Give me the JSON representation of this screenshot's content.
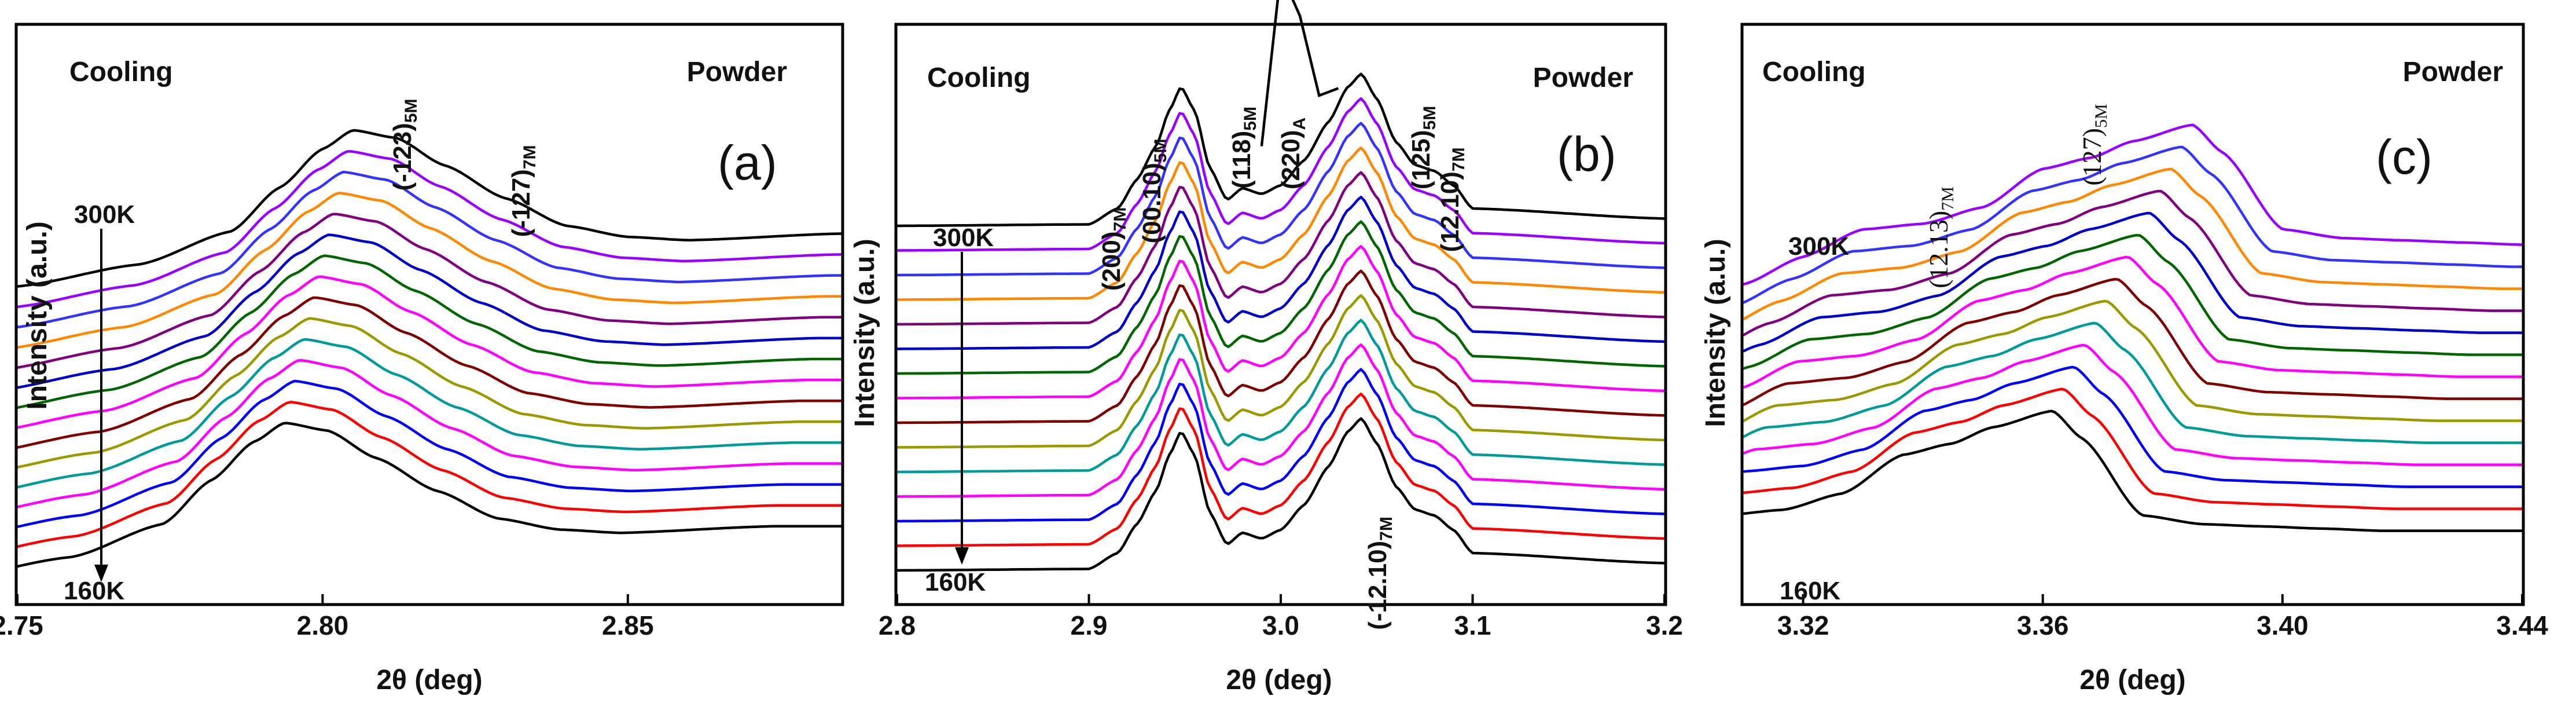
{
  "figure": {
    "background": "#ffffff",
    "frame_color": "#000000"
  },
  "series_colors": [
    "#000000",
    "#ff0000",
    "#0000ff",
    "#ff00ff",
    "#009a9a",
    "#999900",
    "#800000",
    "#ff00ff",
    "#006600",
    "#0000cc",
    "#800080",
    "#ff8800",
    "#3333ff",
    "#9900ff"
  ],
  "chart_data": [
    {
      "panel": "(a)",
      "type": "line",
      "title": "",
      "xlabel": "2θ (deg)",
      "ylabel": "Intensity (a.u.)",
      "xlim": [
        2.75,
        2.885
      ],
      "xticks": [
        2.75,
        2.8,
        2.85
      ],
      "xtick_labels": [
        "2.75",
        "2.80",
        "2.85"
      ],
      "top_left_text": "Cooling",
      "top_right_text": "Powder",
      "temperatures": {
        "start": "300K",
        "end": "160K",
        "direction": "down"
      },
      "n_curves": 15,
      "offset_step": 0.095,
      "series": [
        {
          "name": "profile",
          "x": [
            2.75,
            2.77,
            2.785,
            2.793,
            2.8,
            2.805,
            2.812,
            2.82,
            2.83,
            2.84,
            2.85,
            2.86,
            2.885
          ],
          "y": [
            0.0,
            0.2,
            0.5,
            0.9,
            1.25,
            1.42,
            1.35,
            1.1,
            0.8,
            0.55,
            0.45,
            0.42,
            0.48
          ]
        }
      ],
      "peak_shift_per_curve": -0.0008,
      "annotations": [
        {
          "base": "(-123)",
          "sub": "5M",
          "x": 2.806
        },
        {
          "base": "(-127)",
          "sub": "7M",
          "x": 2.826
        }
      ]
    },
    {
      "panel": "(b)",
      "type": "line",
      "title": "",
      "xlabel": "2θ (deg)",
      "ylabel": "Intensity (a.u.)",
      "xlim": [
        2.8,
        3.2
      ],
      "xticks": [
        2.8,
        2.9,
        3.0,
        3.1,
        3.2
      ],
      "xtick_labels": [
        "2.8",
        "2.9",
        "3.0",
        "3.1",
        "3.2"
      ],
      "top_left_text": "Cooling",
      "top_right_text": "Powder",
      "temperatures": {
        "start": "300K",
        "end": "160K",
        "direction": "down"
      },
      "n_curves": 15,
      "offset_step": 0.085,
      "series": [
        {
          "name": "profile",
          "x": [
            2.8,
            2.9,
            2.915,
            2.925,
            2.935,
            2.942,
            2.948,
            2.955,
            2.963,
            2.972,
            2.98,
            2.99,
            3.0,
            3.012,
            3.025,
            3.035,
            3.042,
            3.05,
            3.06,
            3.07,
            3.08,
            3.09,
            3.1,
            3.2
          ],
          "y": [
            0.0,
            0.01,
            0.12,
            0.32,
            0.55,
            0.8,
            0.96,
            0.8,
            0.4,
            0.18,
            0.26,
            0.22,
            0.28,
            0.45,
            0.72,
            0.96,
            1.05,
            0.88,
            0.58,
            0.42,
            0.38,
            0.28,
            0.12,
            0.05
          ]
        }
      ],
      "peak_shift_per_curve": 0.0,
      "annotations": [
        {
          "base": "(200)",
          "sub": "7M",
          "x": 2.925
        },
        {
          "base": "(00.10)",
          "sub": "5M",
          "x": 2.943
        },
        {
          "base": "(118)",
          "sub": "5M",
          "x": 2.983
        },
        {
          "base": "(220)",
          "sub": "A",
          "x": 3.012
        },
        {
          "base": "(125)",
          "sub": "5M",
          "x": 3.062
        },
        {
          "base": "(12.10)",
          "sub": "7M",
          "x": 3.08
        },
        {
          "base": "(-12.10)",
          "sub": "7M",
          "x": 3.045
        }
      ],
      "top_curve_extra": {
        "x": [
          2.99,
          3.0,
          3.01,
          3.02,
          3.03
        ],
        "y": [
          0.55,
          1.75,
          1.45,
          0.9,
          0.95
        ]
      }
    },
    {
      "panel": "(c)",
      "type": "line",
      "title": "",
      "xlabel": "2θ (deg)",
      "ylabel": "Intensity (a.u.)",
      "xlim": [
        3.31,
        3.44
      ],
      "xticks": [
        3.32,
        3.36,
        3.4,
        3.44
      ],
      "xtick_labels": [
        "3.32",
        "3.36",
        "3.40",
        "3.44"
      ],
      "top_left_text": "Cooling",
      "top_right_text": "Powder",
      "temperatures": {
        "start": "300K",
        "end": "160K",
        "direction": "down"
      },
      "n_curves": 14,
      "offset_step": 0.1,
      "series": [
        {
          "name": "profile",
          "x": [
            3.31,
            3.32,
            3.33,
            3.34,
            3.35,
            3.36,
            3.368,
            3.375,
            3.385,
            3.39,
            3.4,
            3.41,
            3.42,
            3.43,
            3.44
          ],
          "y": [
            0.0,
            0.25,
            0.5,
            0.55,
            0.7,
            1.05,
            1.15,
            1.3,
            1.45,
            1.2,
            0.5,
            0.42,
            0.4,
            0.38,
            0.36
          ]
        }
      ],
      "peak_shift_per_curve": -0.0018,
      "annotations": [
        {
          "base": "(12.13)",
          "sub": "7M",
          "x": 3.345
        },
        {
          "base": "(127)",
          "sub": "5M",
          "x": 3.365
        }
      ]
    }
  ]
}
